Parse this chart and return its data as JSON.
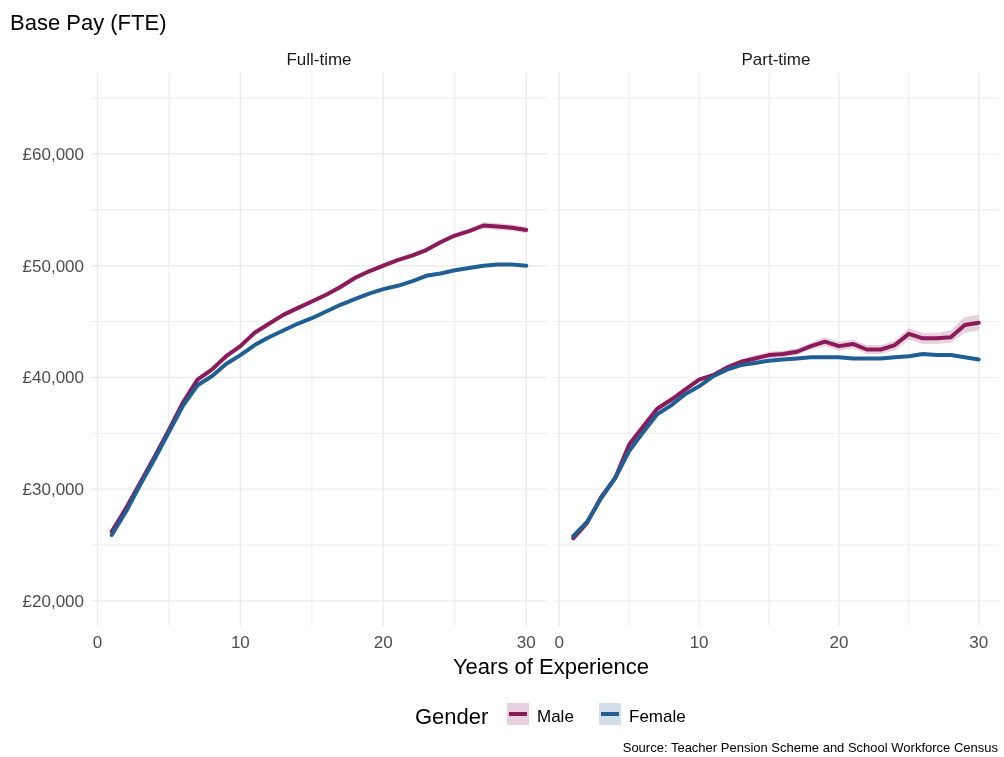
{
  "chart_data": [
    {
      "type": "line",
      "title": "Base Pay (FTE)",
      "subtitle": "Full-time",
      "xlabel": "Years of Experience",
      "legend_title": "Gender",
      "legend": "bottom",
      "grid": true,
      "line_style": "solid",
      "annotations": [
        "Source: Teacher Pension Scheme and School Workforce Census"
      ],
      "x": [
        1,
        2,
        3,
        4,
        5,
        6,
        7,
        8,
        9,
        10,
        11,
        12,
        13,
        14,
        15,
        16,
        17,
        18,
        19,
        20,
        21,
        22,
        23,
        24,
        25,
        26,
        27,
        28,
        29,
        30
      ],
      "xlim": [
        -0.45,
        31.45
      ],
      "xticks": [
        0,
        {
          "value": 5,
          "label": null
        },
        10,
        {
          "value": 15,
          "label": null
        },
        20,
        {
          "value": 25,
          "label": null
        },
        30
      ],
      "ylim": [
        17750,
        67250
      ],
      "yticks": [
        {
          "value": 20000,
          "label": "£20,000"
        },
        {
          "value": 25000,
          "label": null
        },
        {
          "value": 30000,
          "label": "£30,000"
        },
        {
          "value": 35000,
          "label": null
        },
        {
          "value": 40000,
          "label": "£40,000"
        },
        {
          "value": 45000,
          "label": null
        },
        {
          "value": 50000,
          "label": "£50,000"
        },
        {
          "value": 55000,
          "label": null
        },
        {
          "value": 60000,
          "label": "£60,000"
        },
        {
          "value": 65000,
          "label": null
        }
      ],
      "series": [
        {
          "name": "Male",
          "color": "#8b1a5a",
          "values": [
            26200,
            28300,
            30600,
            32900,
            35300,
            37800,
            39800,
            40700,
            41900,
            42800,
            44000,
            44800,
            45600,
            46200,
            46800,
            47400,
            48100,
            48900,
            49500,
            50000,
            50500,
            50900,
            51400,
            52100,
            52700,
            53100,
            53600,
            53500,
            53400,
            53200
          ],
          "lower": [
            26000,
            28100,
            30400,
            32700,
            35100,
            37600,
            39600,
            40500,
            41700,
            42600,
            43800,
            44600,
            45400,
            46000,
            46600,
            47200,
            47900,
            48700,
            49300,
            49800,
            50300,
            50700,
            51200,
            51900,
            52500,
            52900,
            53300,
            53200,
            53100,
            52900
          ],
          "upper": [
            26400,
            28500,
            30800,
            33100,
            35500,
            38000,
            40000,
            40900,
            42100,
            43000,
            44200,
            45000,
            45800,
            46400,
            47000,
            47600,
            48300,
            49100,
            49700,
            50200,
            50700,
            51100,
            51600,
            52300,
            52900,
            53300,
            53900,
            53800,
            53700,
            53500
          ]
        },
        {
          "name": "Female",
          "color": "#1f5f94",
          "values": [
            25900,
            28000,
            30400,
            32700,
            35100,
            37500,
            39300,
            40100,
            41200,
            42000,
            42900,
            43600,
            44200,
            44800,
            45300,
            45900,
            46500,
            47000,
            47500,
            47900,
            48200,
            48600,
            49100,
            49300,
            49600,
            49800,
            50000,
            50100,
            50100,
            50000
          ]
        }
      ]
    },
    {
      "type": "line",
      "subtitle": "Part-time",
      "grid": true,
      "tick_labels": "x",
      "line_style": "solid",
      "x": [
        1,
        2,
        3,
        4,
        5,
        6,
        7,
        8,
        9,
        10,
        11,
        12,
        13,
        14,
        15,
        16,
        17,
        18,
        19,
        20,
        21,
        22,
        23,
        24,
        25,
        26,
        27,
        28,
        29,
        30
      ],
      "xlim": [
        -0.45,
        31.45
      ],
      "xticks": [
        0,
        {
          "value": 5,
          "label": null
        },
        10,
        {
          "value": 15,
          "label": null
        },
        20,
        {
          "value": 25,
          "label": null
        },
        30
      ],
      "ylim": [
        17750,
        67250
      ],
      "yticks": [
        {
          "value": 20000,
          "label": null
        },
        {
          "value": 25000,
          "label": null
        },
        {
          "value": 30000,
          "label": null
        },
        {
          "value": 35000,
          "label": null
        },
        {
          "value": 40000,
          "label": null
        },
        {
          "value": 45000,
          "label": null
        },
        {
          "value": 50000,
          "label": null
        },
        {
          "value": 55000,
          "label": null
        },
        {
          "value": 60000,
          "label": null
        },
        {
          "value": 65000,
          "label": null
        }
      ],
      "series": [
        {
          "color": "#8b1a5a",
          "values": [
            25600,
            27000,
            29300,
            31000,
            34000,
            35600,
            37200,
            38000,
            38900,
            39800,
            40200,
            40900,
            41400,
            41700,
            42000,
            42100,
            42300,
            42800,
            43200,
            42800,
            43000,
            42500,
            42500,
            42900,
            43900,
            43500,
            43500,
            43600,
            44700,
            44900
          ],
          "lower": [
            25400,
            26800,
            29100,
            30800,
            33800,
            35400,
            37000,
            37800,
            38700,
            39600,
            40000,
            40700,
            41100,
            41400,
            41700,
            41800,
            42000,
            42500,
            42800,
            42400,
            42600,
            42100,
            42100,
            42400,
            43400,
            43000,
            43000,
            43100,
            44000,
            44200
          ],
          "upper": [
            25800,
            27200,
            29500,
            31200,
            34200,
            35800,
            37400,
            38200,
            39100,
            40000,
            40400,
            41100,
            41600,
            42000,
            42300,
            42400,
            42600,
            43100,
            43600,
            43200,
            43400,
            42900,
            42900,
            43300,
            44400,
            44000,
            44000,
            44200,
            45400,
            45600
          ]
        },
        {
          "color": "#1f5f94",
          "values": [
            25800,
            27100,
            29200,
            31000,
            33400,
            35100,
            36700,
            37500,
            38500,
            39200,
            40100,
            40700,
            41100,
            41300,
            41500,
            41600,
            41700,
            41800,
            41800,
            41800,
            41700,
            41700,
            41700,
            41800,
            41900,
            42100,
            42000,
            42000,
            41800,
            41600
          ]
        }
      ]
    }
  ]
}
